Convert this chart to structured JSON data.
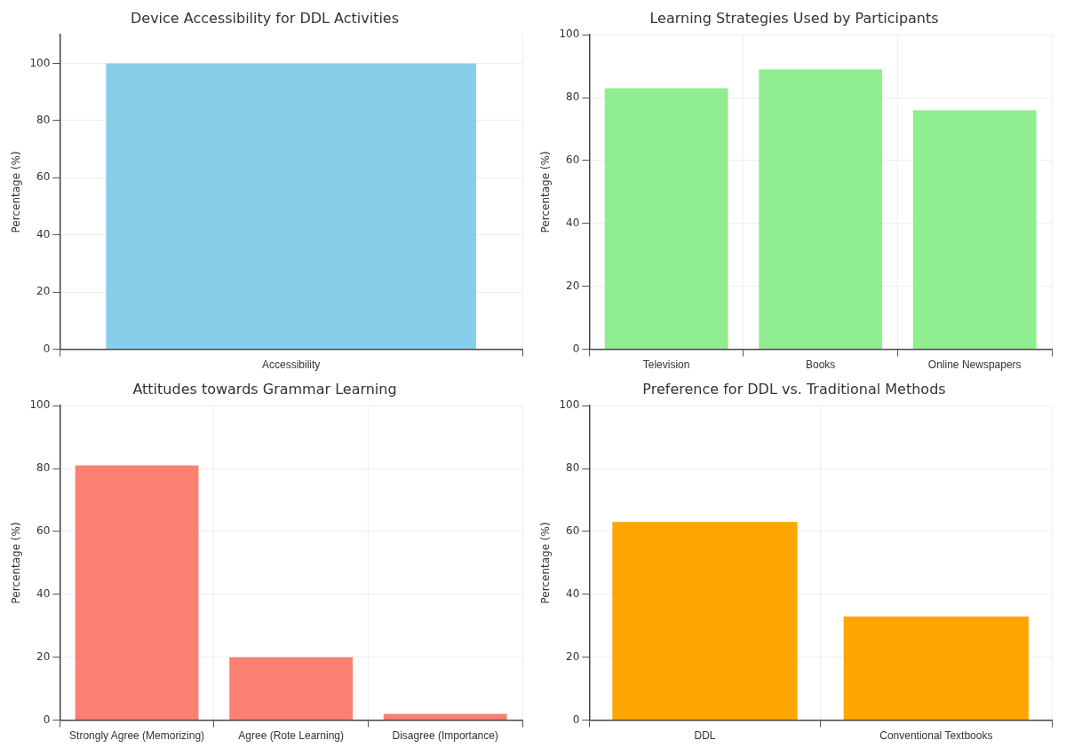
{
  "chart_data": [
    {
      "type": "bar",
      "title": "Device Accessibility for DDL Activities",
      "ylabel": "Percentage (%)",
      "categories": [
        "Accessibility"
      ],
      "values": [
        100
      ],
      "color": "#87ceeb",
      "ylim": [
        0,
        110
      ],
      "yticks": [
        0,
        20,
        40,
        60,
        80,
        100
      ],
      "grid": true
    },
    {
      "type": "bar",
      "title": "Learning Strategies Used by Participants",
      "ylabel": "Percentage (%)",
      "categories": [
        "Television",
        "Books",
        "Online Newspapers"
      ],
      "values": [
        83,
        89,
        76
      ],
      "color": "#90ee90",
      "ylim": [
        0,
        100
      ],
      "yticks": [
        0,
        20,
        40,
        60,
        80,
        100
      ],
      "grid": true
    },
    {
      "type": "bar",
      "title": "Attitudes towards Grammar Learning",
      "ylabel": "Percentage (%)",
      "categories": [
        "Strongly Agree (Memorizing)",
        "Agree (Rote Learning)",
        "Disagree (Importance)"
      ],
      "values": [
        81,
        20,
        2
      ],
      "color": "#fa8072",
      "ylim": [
        0,
        100
      ],
      "yticks": [
        0,
        20,
        40,
        60,
        80,
        100
      ],
      "grid": true
    },
    {
      "type": "bar",
      "title": "Preference for DDL vs. Traditional Methods",
      "ylabel": "Percentage (%)",
      "categories": [
        "DDL",
        "Conventional Textbooks"
      ],
      "values": [
        63,
        33
      ],
      "color": "#ffa500",
      "ylim": [
        0,
        100
      ],
      "yticks": [
        0,
        20,
        40,
        60,
        80,
        100
      ],
      "grid": true
    }
  ]
}
